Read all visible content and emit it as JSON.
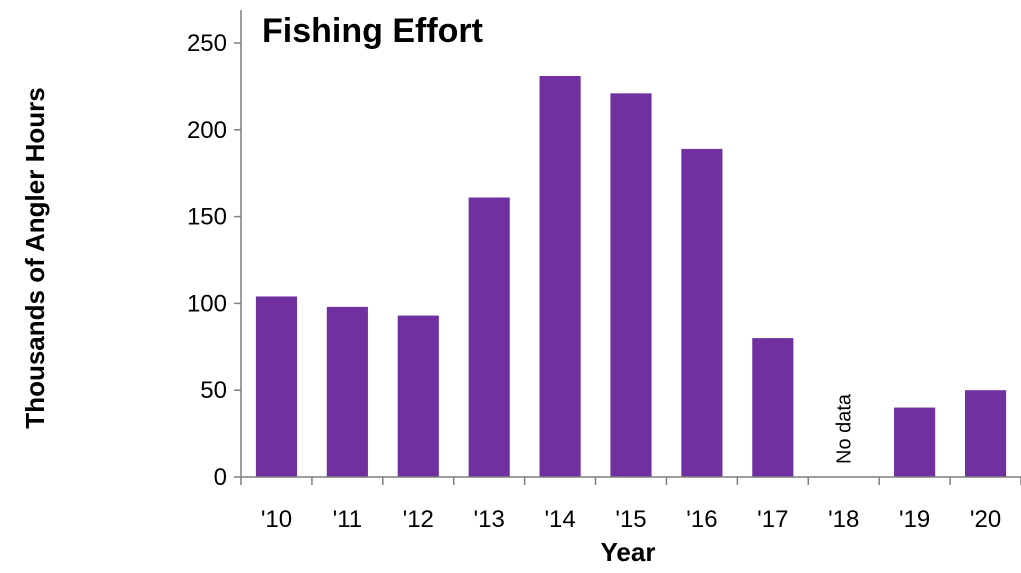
{
  "chart_data": {
    "type": "bar",
    "title": "Fishing Effort",
    "xlabel": "Year",
    "ylabel": "Thousands of Angler Hours",
    "categories": [
      "'10",
      "'11",
      "'12",
      "'13",
      "'14",
      "'15",
      "'16",
      "'17",
      "'18",
      "'19",
      "'20"
    ],
    "values": [
      104,
      98,
      93,
      161,
      231,
      221,
      189,
      80,
      null,
      40,
      50
    ],
    "ylim": [
      0,
      250
    ],
    "yticks": [
      0,
      50,
      100,
      150,
      200,
      250
    ],
    "grid": false,
    "legend": false,
    "annotations": [
      {
        "category": "'18",
        "text": "No data"
      }
    ],
    "colors": {
      "bar": "#7030A0",
      "axis": "#7f7f7f"
    }
  }
}
